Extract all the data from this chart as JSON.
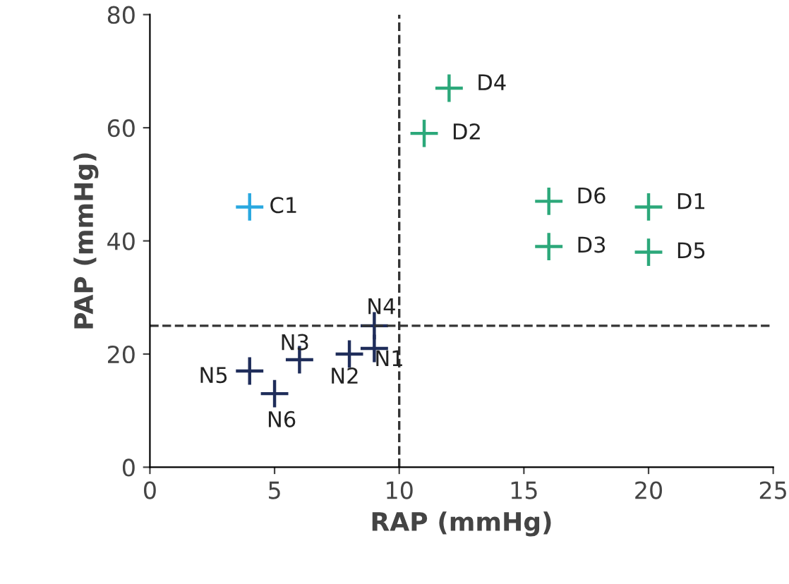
{
  "chart_data": {
    "type": "scatter",
    "xlabel": "RAP (mmHg)",
    "ylabel": "PAP (mmHg)",
    "series": [
      {
        "color": "#29a8e0",
        "x": [
          4
        ],
        "values": [
          46
        ]
      },
      {
        "color": "#2ca87a",
        "x": [
          12,
          11,
          16,
          16,
          20,
          20
        ],
        "values": [
          67,
          59,
          47,
          39,
          46,
          38
        ]
      },
      {
        "color": "#1f2d5a",
        "x": [
          9,
          9,
          8,
          6,
          4,
          5
        ],
        "values": [
          25,
          21,
          20,
          19,
          17,
          13
        ]
      }
    ],
    "annotations": [
      {
        "text": "C1",
        "x": 4,
        "y": 46
      },
      {
        "text": "D4",
        "x": 12,
        "y": 67
      },
      {
        "text": "D2",
        "x": 11,
        "y": 59
      },
      {
        "text": "D6",
        "x": 16,
        "y": 47
      },
      {
        "text": "D3",
        "x": 16,
        "y": 39
      },
      {
        "text": "D1",
        "x": 20,
        "y": 46
      },
      {
        "text": "D5",
        "x": 20,
        "y": 38
      },
      {
        "text": "N4",
        "x": 9,
        "y": 25
      },
      {
        "text": "N1",
        "x": 9,
        "y": 21
      },
      {
        "text": "N2",
        "x": 8,
        "y": 20
      },
      {
        "text": "N3",
        "x": 6,
        "y": 19
      },
      {
        "text": "N5",
        "x": 4,
        "y": 17
      },
      {
        "text": "N6",
        "x": 5,
        "y": 13
      }
    ],
    "ref_lines": [
      {
        "axis": "x",
        "value": 10,
        "line_style": "dashed",
        "color": "#333333"
      },
      {
        "axis": "y",
        "value": 25,
        "line_style": "dashed",
        "color": "#333333"
      }
    ],
    "xlim": [
      0,
      25
    ],
    "ylim": [
      0,
      80
    ],
    "xticks": [
      0,
      5,
      10,
      15,
      20,
      25
    ],
    "yticks": [
      0,
      20,
      40,
      60,
      80
    ],
    "marker": "cross",
    "grid": false,
    "legend": false
  }
}
